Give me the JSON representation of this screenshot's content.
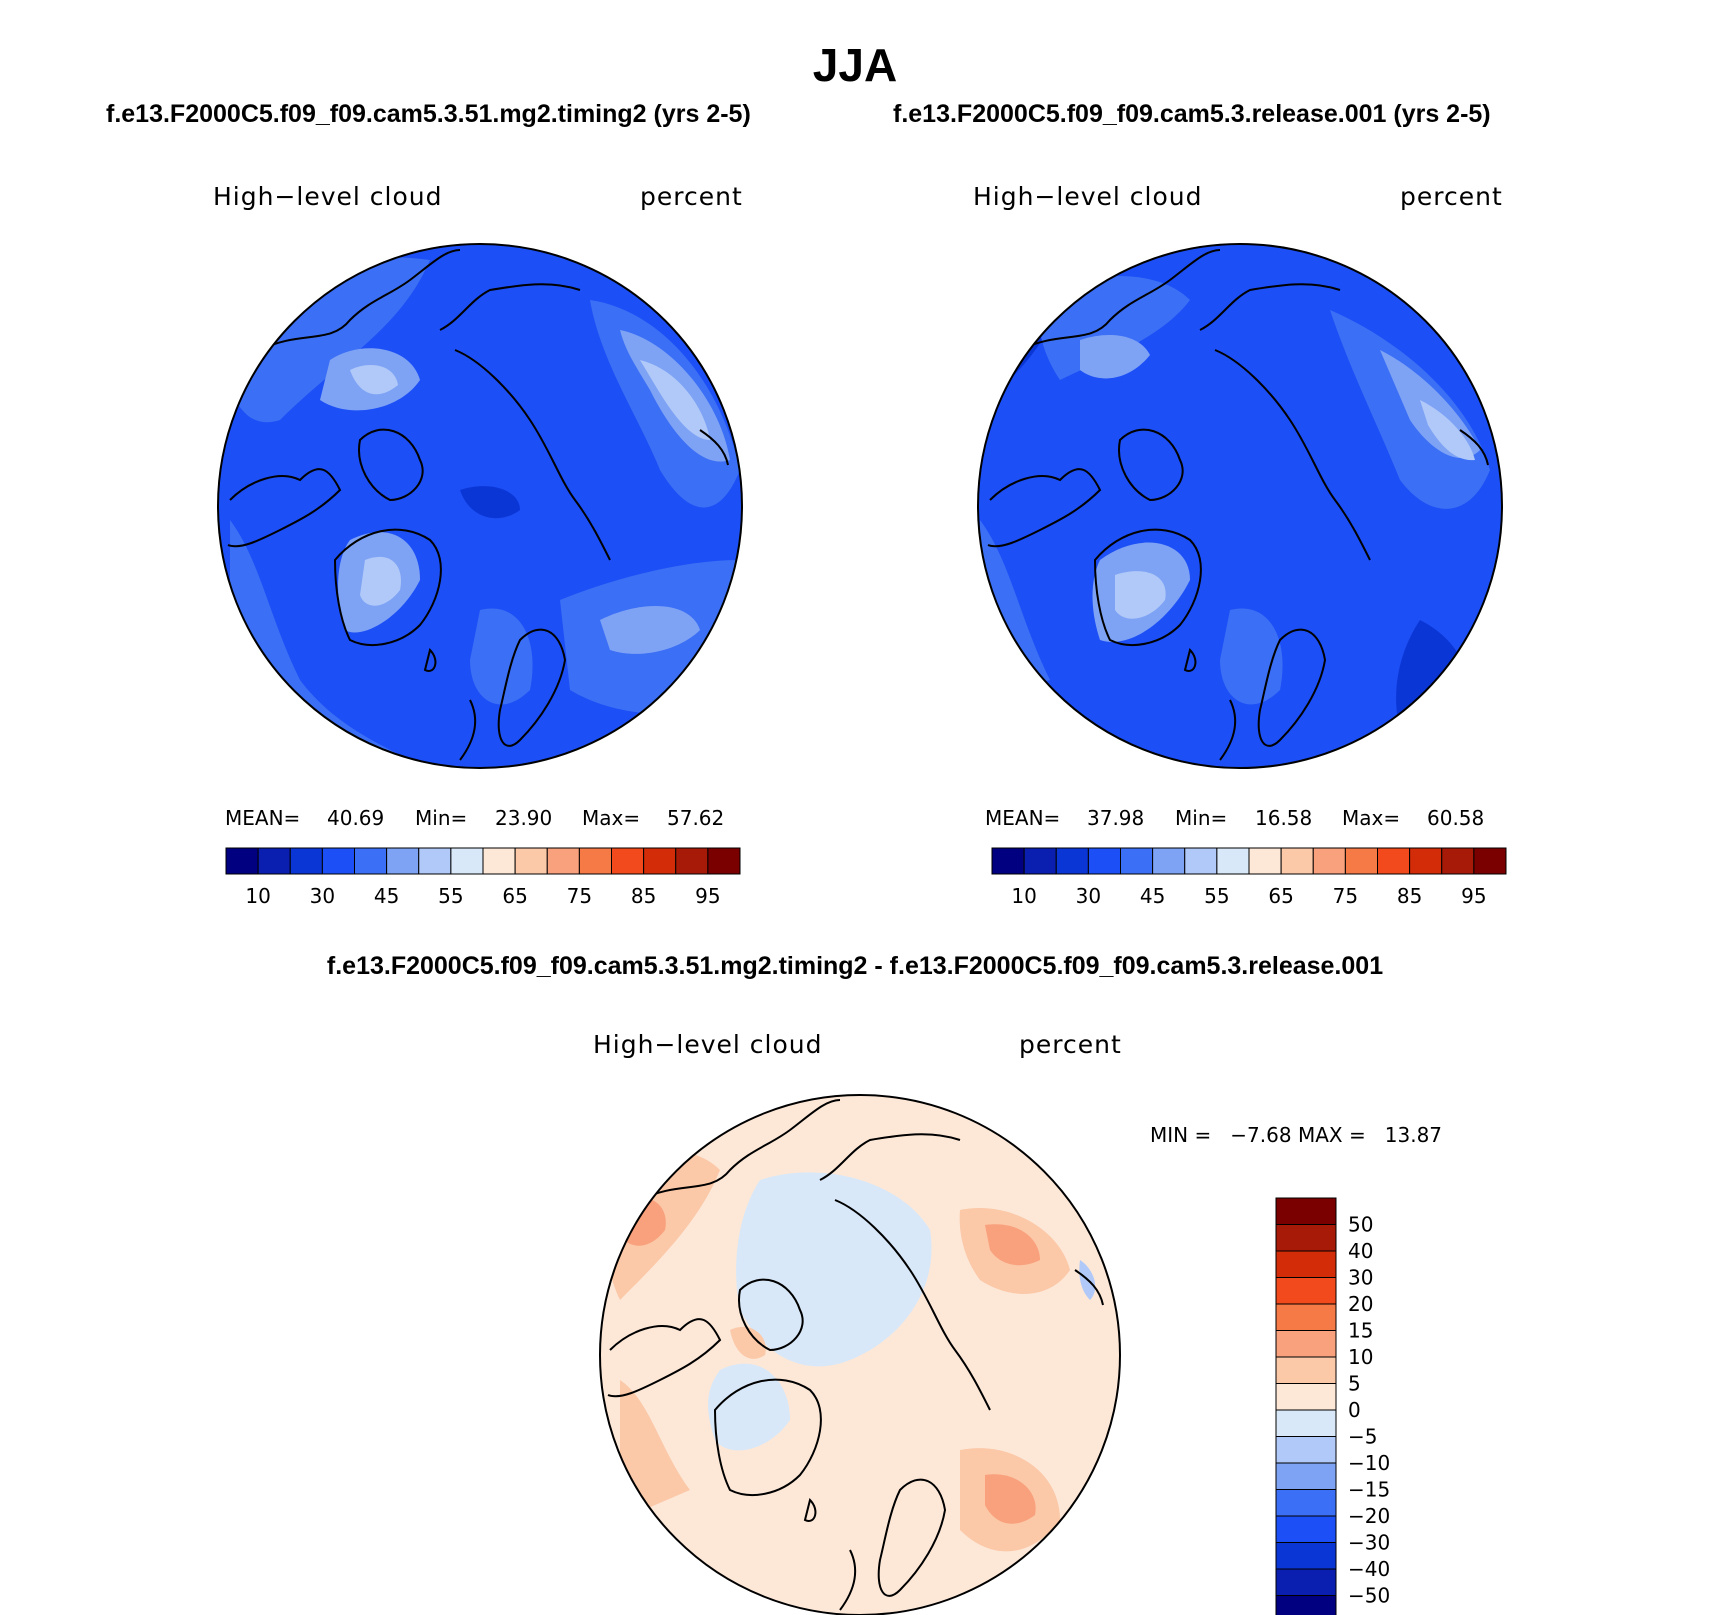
{
  "figure": {
    "season": "JJA",
    "case_a_title": "f.e13.F2000C5.f09_f09.cam5.3.51.mg2.timing2 (yrs 2-5)",
    "case_b_title": "f.e13.F2000C5.f09_f09.cam5.3.release.001 (yrs 2-5)",
    "diff_title": "f.e13.F2000C5.f09_f09.cam5.3.51.mg2.timing2 - f.e13.F2000C5.f09_f09.cam5.3.release.001"
  },
  "panels": {
    "a": {
      "variable": "High−level cloud",
      "units": "percent",
      "mean_label": "MEAN=",
      "mean": "40.69",
      "min_label": "Min=",
      "min": "23.90",
      "max_label": "Max=",
      "max": "57.62"
    },
    "b": {
      "variable": "High−level cloud",
      "units": "percent",
      "mean_label": "MEAN=",
      "mean": "37.98",
      "min_label": "Min=",
      "min": "16.58",
      "max_label": "Max=",
      "max": "60.58"
    },
    "diff": {
      "variable": "High−level cloud",
      "units": "percent",
      "minmax": "MIN =   −7.68 MAX =   13.87"
    }
  },
  "colorbars": {
    "abs_colors": [
      "#000080",
      "#0a1fb0",
      "#0b36d6",
      "#1c4ff5",
      "#3b6ff5",
      "#7ea3f5",
      "#b1c9f8",
      "#d8e8f8",
      "#fde8d8",
      "#fbc8a8",
      "#f9a07c",
      "#f67a46",
      "#f24a1c",
      "#d22c08",
      "#a81a08",
      "#7a0000"
    ],
    "abs_ticks": [
      "10",
      "30",
      "45",
      "55",
      "65",
      "75",
      "85",
      "95"
    ],
    "diff_colors": [
      "#000080",
      "#0a1fb0",
      "#0b36d6",
      "#1c4ff5",
      "#3b6ff5",
      "#7ea3f5",
      "#b1c9f8",
      "#d8e8f8",
      "#fde8d8",
      "#fbc8a8",
      "#f9a07c",
      "#f67a46",
      "#f24a1c",
      "#d22c08",
      "#a81a08",
      "#7a0000"
    ],
    "diff_ticks": [
      "50",
      "40",
      "30",
      "20",
      "15",
      "10",
      "5",
      "0",
      "−5",
      "−10",
      "−15",
      "−20",
      "−30",
      "−40",
      "−50"
    ]
  },
  "map_colors": {
    "a_base": "#1c4ff5",
    "a_mid": "#3b6ff5",
    "a_light": "#7ea3f5",
    "a_pale": "#b1c9f8",
    "a_dark": "#0b36d6",
    "b_base": "#1c4ff5",
    "b_mid": "#3b6ff5",
    "b_light": "#7ea3f5",
    "b_pale": "#b1c9f8",
    "b_dark": "#0b36d6",
    "d_base": "#fde8d8",
    "d_warm": "#fbc8a8",
    "d_warm2": "#f9a07c",
    "d_cool": "#d8e8f8",
    "d_cool2": "#b1c9f8"
  }
}
